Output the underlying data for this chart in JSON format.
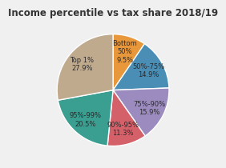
{
  "title": "Income percentile vs tax share 2018/19",
  "labels": [
    "Bottom\n50%\n9.5%",
    "50%-75%\n14.9%",
    "75%-90%\n15.9%",
    "90%-95%\n11.3%",
    "95%-99%\n20.5%",
    "Top 1%\n27.9%"
  ],
  "values": [
    9.5,
    14.9,
    15.9,
    11.3,
    20.5,
    27.9
  ],
  "colors": [
    "#e8973a",
    "#4a8db5",
    "#9b8bbf",
    "#d4606a",
    "#3a9e91",
    "#bfaa8e"
  ],
  "title_fontsize": 8.5,
  "label_fontsize": 6.0,
  "startangle": 90,
  "background_color": "#f0f0f0"
}
